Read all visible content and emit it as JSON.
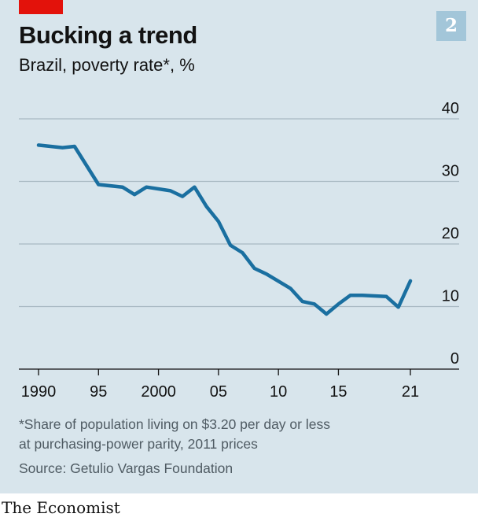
{
  "title": "Bucking a trend",
  "subtitle": "Brazil, poverty rate*, %",
  "chart_number": "2",
  "footnote_line1": "*Share of population living on $3.20 per day or less",
  "footnote_line2": "at purchasing-power parity, 2011 prices",
  "source": "Source: Getulio Vargas Foundation",
  "brand": "The Economist",
  "colors": {
    "background": "#d8e5ec",
    "line": "#1a6fa0",
    "accent_red": "#e3120b",
    "badge": "#a3c6d9"
  },
  "chart_data": {
    "type": "line",
    "title": "Bucking a trend",
    "subtitle": "Brazil, poverty rate*, %",
    "xlabel": "",
    "ylabel": "",
    "xlim": [
      1990,
      2021
    ],
    "ylim": [
      0,
      40
    ],
    "x_ticks": [
      1990,
      1995,
      2000,
      2005,
      2010,
      2015,
      2021
    ],
    "x_tick_labels": [
      "1990",
      "95",
      "2000",
      "05",
      "10",
      "15",
      "21"
    ],
    "y_ticks": [
      0,
      10,
      20,
      30,
      40
    ],
    "y_tick_labels": [
      "0",
      "10",
      "20",
      "30",
      "40"
    ],
    "grid": true,
    "series": [
      {
        "x": [
          1990,
          1992,
          1993,
          1995,
          1997,
          1998,
          1999,
          2001,
          2002,
          2003,
          2004,
          2005,
          2006,
          2007,
          2008,
          2009,
          2011,
          2012,
          2013,
          2014,
          2015,
          2016,
          2017,
          2018,
          2019,
          2020,
          2021
        ],
        "values": [
          35.8,
          35.4,
          35.6,
          29.5,
          29.1,
          27.9,
          29.1,
          28.5,
          27.6,
          29.1,
          26.0,
          23.6,
          19.8,
          18.6,
          16.1,
          15.2,
          12.9,
          10.8,
          10.4,
          8.8,
          10.4,
          11.8,
          11.8,
          11.7,
          11.6,
          9.9,
          14.1
        ]
      }
    ]
  }
}
